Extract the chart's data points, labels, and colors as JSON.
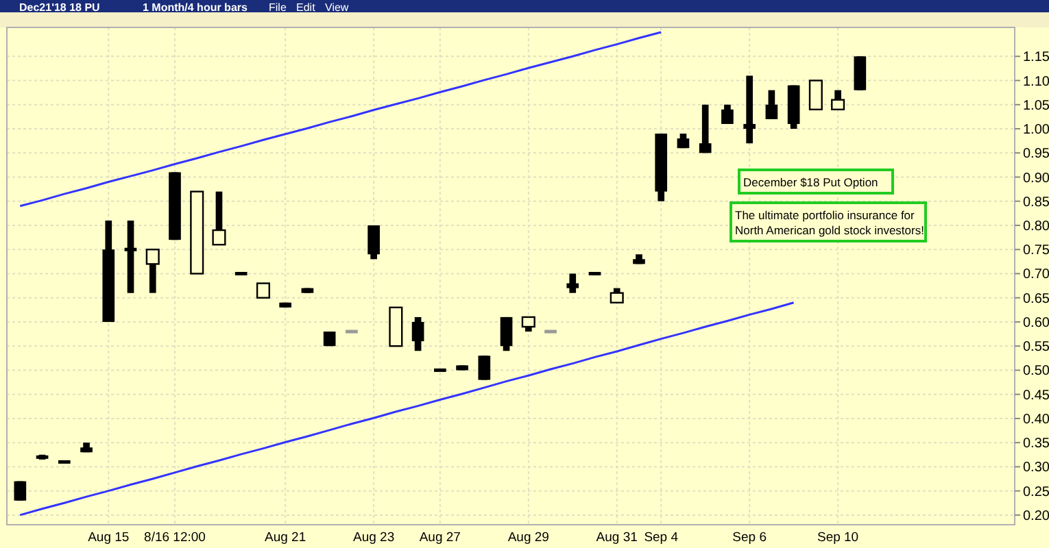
{
  "chart_data": {
    "type": "candlestick",
    "categories": [
      null,
      null,
      null,
      null,
      "Aug 15",
      null,
      null,
      "8/16 12:00",
      null,
      null,
      null,
      null,
      "Aug 21",
      null,
      null,
      null,
      "Aug 23",
      null,
      null,
      "Aug 27",
      null,
      null,
      null,
      "Aug 29",
      null,
      null,
      null,
      "Aug 31",
      null,
      "Sep 4",
      null,
      null,
      null,
      "Sep 6",
      null,
      null,
      null,
      "Sep 10",
      null
    ],
    "ohlc": [
      [
        0.23,
        0.27,
        0.23,
        0.27
      ],
      [
        0.32,
        0.325,
        0.315,
        0.32
      ],
      [
        0.31,
        0.31,
        0.31,
        0.31
      ],
      [
        0.33,
        0.35,
        0.33,
        0.34
      ],
      [
        0.6,
        0.81,
        0.6,
        0.75
      ],
      [
        0.75,
        0.81,
        0.66,
        0.75
      ],
      [
        0.75,
        0.75,
        0.66,
        0.72
      ],
      [
        0.77,
        0.91,
        0.77,
        0.91
      ],
      [
        0.87,
        0.87,
        0.7,
        0.7
      ],
      [
        0.79,
        0.87,
        0.76,
        0.76
      ],
      [
        0.7,
        0.7,
        0.7,
        0.7
      ],
      [
        0.68,
        0.68,
        0.65,
        0.65
      ],
      [
        0.63,
        0.64,
        0.63,
        0.64
      ],
      [
        0.66,
        0.67,
        0.66,
        0.67
      ],
      [
        0.55,
        0.58,
        0.55,
        0.58
      ],
      [
        0.58,
        0.58,
        0.58,
        0.58
      ],
      [
        0.74,
        0.8,
        0.73,
        0.8
      ],
      [
        0.63,
        0.63,
        0.55,
        0.55
      ],
      [
        0.56,
        0.61,
        0.54,
        0.6
      ],
      [
        0.5,
        0.5,
        0.5,
        0.5
      ],
      [
        0.5,
        0.51,
        0.5,
        0.51
      ],
      [
        0.48,
        0.53,
        0.48,
        0.53
      ],
      [
        0.55,
        0.61,
        0.54,
        0.61
      ],
      [
        0.61,
        0.61,
        0.58,
        0.59
      ],
      [
        0.58,
        0.58,
        0.58,
        0.58
      ],
      [
        0.67,
        0.7,
        0.66,
        0.68
      ],
      [
        0.7,
        0.7,
        0.7,
        0.7
      ],
      [
        0.66,
        0.67,
        0.64,
        0.64
      ],
      [
        0.72,
        0.74,
        0.72,
        0.73
      ],
      [
        0.87,
        0.99,
        0.85,
        0.99
      ],
      [
        0.96,
        0.99,
        0.96,
        0.98
      ],
      [
        0.95,
        1.05,
        0.95,
        0.97
      ],
      [
        1.01,
        1.05,
        1.01,
        1.04
      ],
      [
        1.0,
        1.11,
        0.97,
        1.01
      ],
      [
        1.02,
        1.08,
        1.02,
        1.05
      ],
      [
        1.01,
        1.09,
        1.0,
        1.09
      ],
      [
        1.1,
        1.1,
        1.04,
        1.04
      ],
      [
        1.06,
        1.08,
        1.04,
        1.04
      ],
      [
        1.08,
        1.15,
        1.08,
        1.15
      ]
    ],
    "colors": [
      "#000000",
      "#000000",
      "#000000",
      "#000000",
      "#000000",
      "#000000",
      "#000000",
      "#000000",
      "#000000",
      "#000000",
      "#000000",
      "#000000",
      "#000000",
      "#000000",
      "#000000",
      "#999999",
      "#000000",
      "#000000",
      "#000000",
      "#000000",
      "#000000",
      "#000000",
      "#000000",
      "#000000",
      "#999999",
      "#000000",
      "#000000",
      "#000000",
      "#000000",
      "#000000",
      "#000000",
      "#000000",
      "#000000",
      "#000000",
      "#000000",
      "#000000",
      "#000000",
      "#000000",
      "#000000"
    ],
    "series": [
      {
        "type": "line",
        "color": "#3333ff",
        "values": [
          0.84,
          0.852,
          0.865,
          0.877,
          0.89,
          0.902,
          0.914,
          0.927,
          0.939,
          0.952,
          0.964,
          0.977,
          0.989,
          1.001,
          1.014,
          1.026,
          1.039,
          1.051,
          1.063,
          1.076,
          1.088,
          1.101,
          1.113,
          1.126,
          1.138,
          1.15,
          1.163,
          1.175,
          1.188,
          1.2,
          null,
          null,
          null,
          null,
          null,
          null,
          null,
          null,
          null
        ]
      },
      {
        "type": "line",
        "color": "#3333ff",
        "values": [
          0.2,
          0.213,
          0.225,
          0.238,
          0.25,
          0.263,
          0.275,
          0.288,
          0.301,
          0.313,
          0.326,
          0.338,
          0.351,
          0.363,
          0.376,
          0.389,
          0.401,
          0.414,
          0.426,
          0.439,
          0.451,
          0.464,
          0.477,
          0.489,
          0.502,
          0.514,
          0.527,
          0.539,
          0.552,
          0.565,
          0.577,
          0.59,
          0.602,
          0.615,
          0.627,
          0.64,
          null,
          null,
          null
        ]
      }
    ],
    "ylim": [
      0.18,
      1.21
    ],
    "yticks": [
      {
        "value": 0.2,
        "label": "0.20"
      },
      0.25,
      {
        "value": 0.3,
        "label": "0.30"
      },
      0.35,
      {
        "value": 0.4,
        "label": "0.40"
      },
      0.45,
      {
        "value": 0.5,
        "label": "0.50"
      },
      0.55,
      {
        "value": 0.6,
        "label": "0.60"
      },
      0.65,
      {
        "value": 0.7,
        "label": "0.70"
      },
      0.75,
      {
        "value": 0.8,
        "label": "0.80"
      },
      0.85,
      {
        "value": 0.9,
        "label": "0.90"
      },
      0.95,
      {
        "value": 1.0,
        "label": "1.00"
      },
      1.05,
      {
        "value": 1.1,
        "label": "1.10"
      },
      1.15
    ],
    "grid": true,
    "annotations": [
      "Dec21'18 18 PU",
      "1 Month/4 hour bars",
      "File",
      "Edit",
      "View",
      "December $18 Put Option",
      "The ultimate portfolio insurance for\nNorth American gold stock investors!"
    ]
  }
}
